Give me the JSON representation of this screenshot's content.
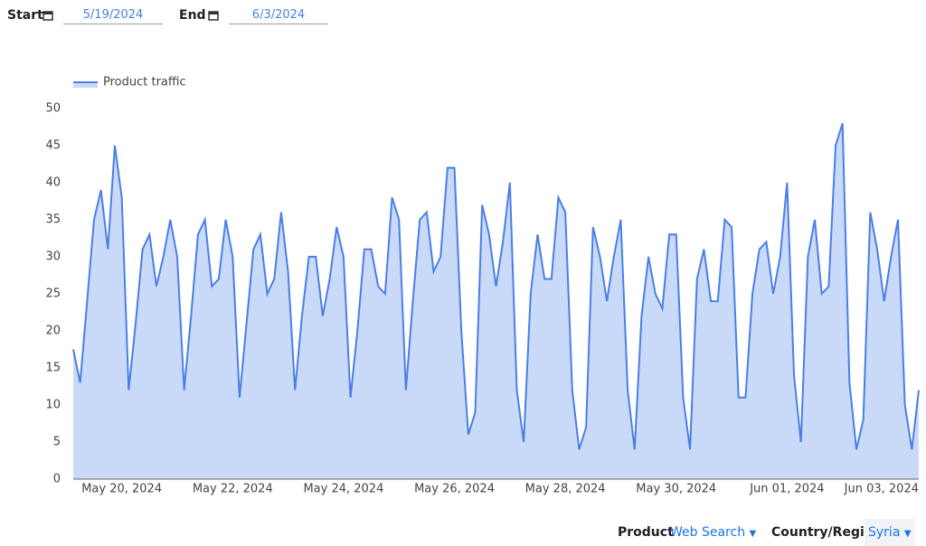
{
  "controls": {
    "start_label": "Start",
    "start_value": "5/19/2024",
    "end_label": "End",
    "end_value": "6/3/2024",
    "product_label": "Product",
    "product_value": "Web Search",
    "region_label": "Country/Region",
    "region_value": "Syria"
  },
  "chart_data": {
    "type": "area",
    "categories": [
      null,
      null,
      null,
      null,
      null,
      null,
      null,
      "May 20, 2024",
      null,
      null,
      null,
      null,
      null,
      null,
      null,
      null,
      null,
      null,
      null,
      null,
      null,
      null,
      null,
      "May 22, 2024",
      null,
      null,
      null,
      null,
      null,
      null,
      null,
      null,
      null,
      null,
      null,
      null,
      null,
      null,
      null,
      "May 24, 2024",
      null,
      null,
      null,
      null,
      null,
      null,
      null,
      null,
      null,
      null,
      null,
      null,
      null,
      null,
      null,
      "May 26, 2024",
      null,
      null,
      null,
      null,
      null,
      null,
      null,
      null,
      null,
      null,
      null,
      null,
      null,
      null,
      null,
      "May 28, 2024",
      null,
      null,
      null,
      null,
      null,
      null,
      null,
      null,
      null,
      null,
      null,
      null,
      null,
      null,
      null,
      "May 30, 2024",
      null,
      null,
      null,
      null,
      null,
      null,
      null,
      null,
      null,
      null,
      null,
      null,
      null,
      null,
      null,
      "Jun 01, 2024",
      null,
      null,
      null,
      null,
      null,
      null,
      null,
      null,
      null,
      null,
      null,
      null,
      null,
      null,
      null,
      "Jun 03, 2024",
      null,
      null,
      null
    ],
    "series": [
      {
        "name": "Product traffic",
        "color": "#4a7fe6",
        "fill": "#c9daf8",
        "values": [
          17.5,
          13,
          24,
          35,
          39,
          31,
          45,
          38,
          12,
          21,
          31,
          33,
          26,
          30,
          35,
          30,
          12,
          22,
          33,
          35,
          26,
          27,
          35,
          30,
          11,
          21,
          31,
          33,
          25,
          27,
          36,
          28,
          12,
          22,
          30,
          30,
          22,
          27,
          34,
          30,
          11,
          20,
          31,
          31,
          26,
          25,
          38,
          35,
          12,
          24,
          35,
          36,
          28,
          30,
          42,
          42,
          20,
          6,
          9,
          37,
          33,
          26,
          32,
          40,
          12,
          5,
          25,
          33,
          27,
          27,
          38,
          36,
          12,
          4,
          7,
          34,
          30,
          24,
          30,
          35,
          12,
          4,
          22,
          30,
          25,
          23,
          33,
          33,
          11,
          4,
          27,
          31,
          24,
          24,
          35,
          34,
          11,
          11,
          25,
          31,
          32,
          25,
          30,
          40,
          14,
          5,
          30,
          35,
          25,
          26,
          45,
          48,
          13,
          4,
          8,
          36,
          31,
          24,
          30,
          35,
          10,
          4,
          12
        ]
      }
    ],
    "ylim": [
      0,
      50
    ],
    "yticks": [
      0,
      5,
      10,
      15,
      20,
      25,
      30,
      35,
      40,
      45,
      50
    ],
    "grid": false,
    "legend": "top-left"
  }
}
